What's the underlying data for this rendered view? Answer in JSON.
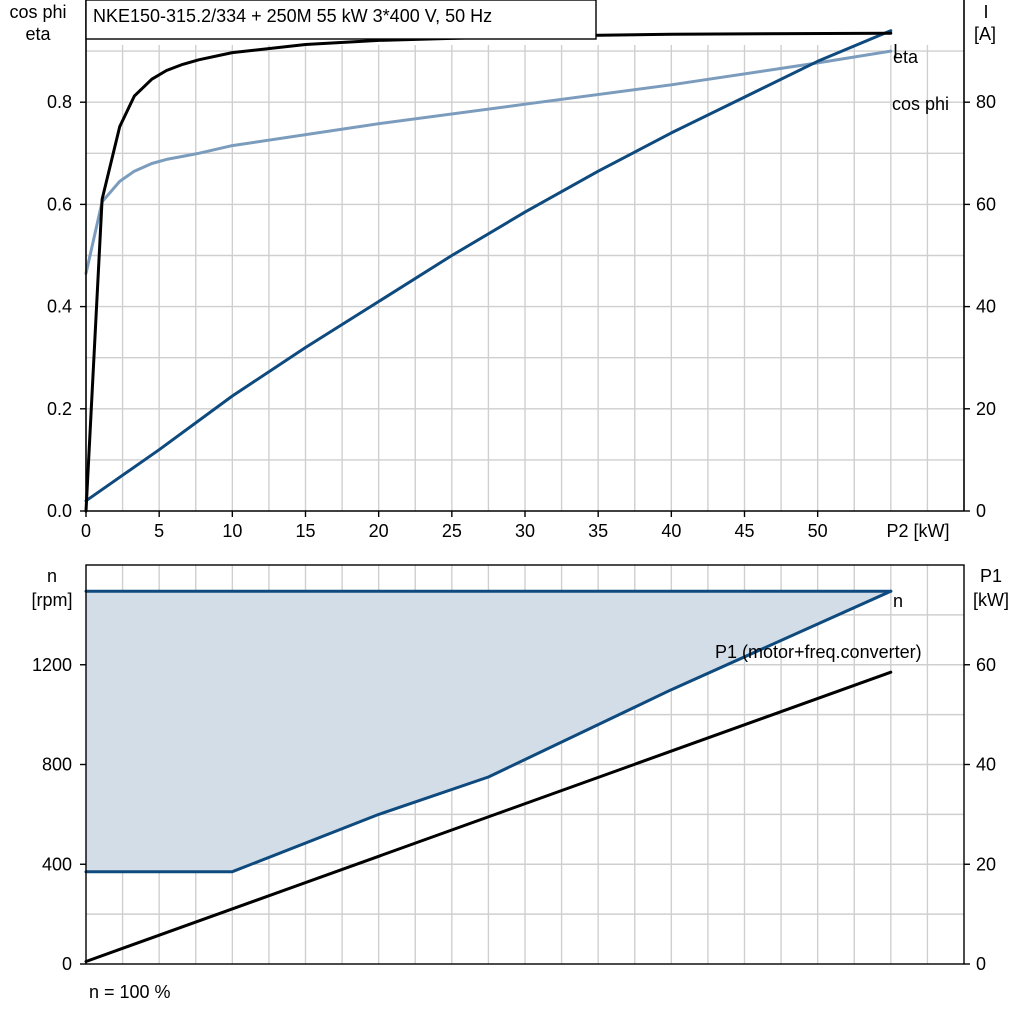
{
  "title": "NKE150-315.2/334 + 250M   55 kW   3*400 V, 50 Hz",
  "footer_note": "n = 100 %",
  "colors": {
    "eta": "#000000",
    "cos_phi": "#7b9cbc",
    "current": "#0e4a7e",
    "speed": "#0e4a7e",
    "speed_band_fill": "#d3dde8",
    "p1": "#000000",
    "grid": "#cfcfcf"
  },
  "chart_data": [
    {
      "type": "line",
      "xlabel": "P2 [kW]",
      "ylabel_left": [
        "cos phi",
        "eta"
      ],
      "ylabel_right": [
        "I",
        "[A]"
      ],
      "xlim": [
        0,
        60
      ],
      "xmax_data": 55,
      "ylim_left": [
        0,
        1.0
      ],
      "ylim_right": [
        0,
        100
      ],
      "x_ticks": [
        "0",
        "5",
        "10",
        "15",
        "20",
        "25",
        "30",
        "35",
        "40",
        "45",
        "50"
      ],
      "y_ticks_left": [
        "0.0",
        "0.2",
        "0.4",
        "0.6",
        "0.8"
      ],
      "y_ticks_right": [
        "0",
        "20",
        "40",
        "60",
        "80"
      ],
      "grid": true,
      "series": [
        {
          "name": "eta",
          "axis": "left",
          "color_key": "eta",
          "x": [
            0,
            1.1,
            2.3,
            3.3,
            4.5,
            5.5,
            6.6,
            7.7,
            10,
            15,
            20,
            30,
            40,
            55
          ],
          "y": [
            0.0,
            0.61,
            0.752,
            0.812,
            0.845,
            0.862,
            0.874,
            0.883,
            0.897,
            0.913,
            0.921,
            0.929,
            0.933,
            0.935
          ]
        },
        {
          "name": "cos phi",
          "axis": "left",
          "color_key": "cos_phi",
          "x": [
            0,
            1.1,
            2.3,
            3.3,
            4.5,
            5.5,
            6.6,
            7.7,
            10,
            20,
            30,
            40,
            50,
            55
          ],
          "y": [
            0.465,
            0.605,
            0.645,
            0.665,
            0.68,
            0.688,
            0.694,
            0.7,
            0.715,
            0.758,
            0.796,
            0.834,
            0.877,
            0.9
          ]
        },
        {
          "name": "I",
          "axis": "right",
          "color_key": "current",
          "x": [
            0,
            5,
            10,
            15,
            20,
            25,
            30,
            35,
            40,
            45,
            50,
            55
          ],
          "y": [
            2,
            12,
            22.5,
            32,
            41,
            50,
            58.5,
            66.5,
            74,
            81,
            88,
            94
          ]
        }
      ]
    },
    {
      "type": "area",
      "xlim": [
        0,
        60
      ],
      "ylabel_left": [
        "n",
        "[rpm]"
      ],
      "ylabel_right": [
        "P1",
        "[kW]"
      ],
      "ylim_left": [
        0,
        1600
      ],
      "ylim_right": [
        0,
        80
      ],
      "y_ticks_left": [
        "0",
        "400",
        "800",
        "1200"
      ],
      "y_ticks_right": [
        "0",
        "20",
        "40",
        "60"
      ],
      "grid": true,
      "series": [
        {
          "name": "n",
          "axis": "left",
          "color_key": "speed",
          "role": "max speed",
          "x": [
            0,
            55
          ],
          "y": [
            1495,
            1495
          ]
        },
        {
          "name": "",
          "axis": "left",
          "color_key": "speed",
          "role": "min speed",
          "x": [
            0,
            10,
            20,
            27.5,
            40,
            55
          ],
          "y": [
            370,
            370,
            600,
            750,
            1100,
            1495
          ]
        },
        {
          "name": "P1 (motor+freq.converter)",
          "axis": "right",
          "color_key": "p1",
          "x": [
            0,
            55
          ],
          "y": [
            0.5,
            58.5
          ]
        }
      ]
    }
  ]
}
